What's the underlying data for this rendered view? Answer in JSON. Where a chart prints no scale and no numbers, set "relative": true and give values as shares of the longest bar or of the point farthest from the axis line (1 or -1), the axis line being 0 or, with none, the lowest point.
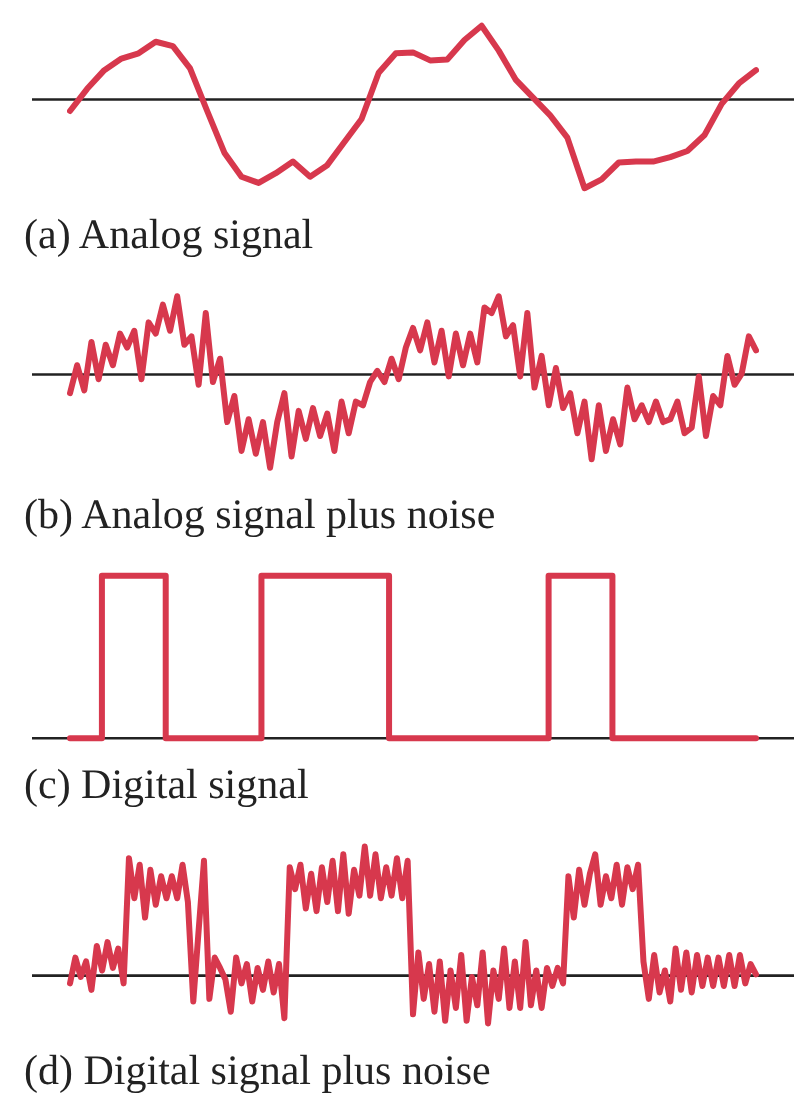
{
  "chart_data": [
    {
      "type": "line",
      "title": "(a) Analog signal",
      "relative": true,
      "tick_labels": false,
      "color": "#d7384d",
      "categories": [
        null,
        null,
        null,
        null,
        null,
        null,
        null,
        null,
        null,
        null,
        null,
        null,
        null,
        null,
        null,
        null,
        null,
        null,
        null,
        null,
        null,
        null,
        null,
        null,
        null,
        null,
        null,
        null,
        null,
        null,
        null,
        null,
        null,
        null,
        null,
        null,
        null,
        null,
        null,
        null,
        null
      ],
      "values": [
        -0.13,
        0.12,
        0.33,
        0.46,
        0.52,
        0.65,
        0.6,
        0.35,
        -0.13,
        -0.6,
        -0.87,
        -0.94,
        -0.83,
        -0.7,
        -0.87,
        -0.74,
        -0.48,
        -0.22,
        0.3,
        0.52,
        0.53,
        0.44,
        0.45,
        0.67,
        0.83,
        0.55,
        0.22,
        0.02,
        -0.18,
        -0.43,
        -1,
        -0.9,
        -0.71,
        -0.7,
        -0.7,
        -0.65,
        -0.58,
        -0.4,
        -0.05,
        0.18,
        0.33
      ]
    },
    {
      "type": "line",
      "title": "(b) Analog signal plus noise",
      "relative": true,
      "tick_labels": false,
      "color": "#d7384d",
      "categories": [
        null,
        null,
        null,
        null,
        null,
        null,
        null,
        null,
        null,
        null,
        null,
        null,
        null,
        null,
        null,
        null,
        null,
        null,
        null,
        null,
        null,
        null,
        null,
        null,
        null,
        null,
        null,
        null,
        null,
        null,
        null,
        null,
        null,
        null,
        null,
        null,
        null,
        null,
        null,
        null,
        null,
        null,
        null,
        null,
        null,
        null,
        null,
        null,
        null,
        null,
        null,
        null,
        null,
        null,
        null,
        null,
        null,
        null,
        null,
        null,
        null,
        null,
        null,
        null,
        null,
        null,
        null,
        null,
        null,
        null,
        null,
        null,
        null,
        null,
        null,
        null,
        null,
        null,
        null,
        null,
        null,
        null,
        null,
        null,
        null,
        null,
        null,
        null,
        null,
        null,
        null,
        null,
        null,
        null,
        null,
        null,
        null
      ],
      "values": [
        -0.2,
        0.1,
        -0.17,
        0.35,
        -0.05,
        0.32,
        0.1,
        0.44,
        0.29,
        0.47,
        -0.05,
        0.56,
        0.44,
        0.75,
        0.47,
        0.84,
        0.32,
        0.41,
        -0.11,
        0.66,
        -0.08,
        0.17,
        -0.51,
        -0.23,
        -0.82,
        -0.48,
        -0.85,
        -0.51,
        -1,
        -0.51,
        -0.2,
        -0.88,
        -0.39,
        -0.69,
        -0.36,
        -0.66,
        -0.42,
        -0.82,
        -0.29,
        -0.63,
        -0.29,
        -0.33,
        -0.08,
        0.04,
        -0.08,
        0.17,
        -0.05,
        0.29,
        0.5,
        0.26,
        0.56,
        0.13,
        0.47,
        -0.02,
        0.44,
        0.1,
        0.44,
        0.13,
        0.72,
        0.66,
        0.84,
        0.41,
        0.53,
        -0.02,
        0.66,
        -0.14,
        0.2,
        -0.33,
        0.07,
        -0.36,
        -0.2,
        -0.63,
        -0.29,
        -0.91,
        -0.33,
        -0.82,
        -0.48,
        -0.75,
        -0.14,
        -0.48,
        -0.33,
        -0.51,
        -0.29,
        -0.51,
        -0.48,
        -0.29,
        -0.63,
        -0.57,
        -0.02,
        -0.66,
        -0.23,
        -0.33,
        0.2,
        -0.11,
        0.01,
        0.41,
        0.26
      ]
    },
    {
      "type": "step",
      "title": "(c) Digital signal",
      "relative": true,
      "tick_labels": false,
      "color": "#d7384d",
      "categories": [
        null,
        null,
        null,
        null,
        null,
        null,
        null,
        null,
        null,
        null,
        null,
        null,
        null,
        null,
        null,
        null,
        null,
        null,
        null,
        null,
        null,
        null,
        null,
        null,
        null,
        null,
        null,
        null,
        null,
        null,
        null,
        null,
        null,
        null,
        null,
        null,
        null,
        null,
        null,
        null,
        null,
        null,
        null,
        null
      ],
      "values": [
        0,
        0,
        0,
        1,
        1,
        1,
        1,
        0,
        0,
        0,
        0,
        0,
        0,
        1,
        1,
        1,
        1,
        1,
        1,
        1,
        1,
        0,
        0,
        0,
        0,
        0,
        0,
        0,
        0,
        0,
        0,
        1,
        1,
        1,
        1,
        0,
        0,
        0,
        0,
        0,
        0,
        0,
        0,
        0
      ]
    },
    {
      "type": "line",
      "title": "(d) Digital signal plus noise",
      "relative": true,
      "tick_labels": false,
      "color": "#d7384d",
      "categories": [
        null,
        null,
        null,
        null,
        null,
        null,
        null,
        null,
        null,
        null,
        null,
        null,
        null,
        null,
        null,
        null,
        null,
        null,
        null,
        null,
        null,
        null,
        null,
        null,
        null,
        null,
        null,
        null,
        null,
        null,
        null,
        null,
        null,
        null,
        null,
        null,
        null,
        null,
        null,
        null,
        null,
        null,
        null,
        null,
        null,
        null,
        null,
        null,
        null,
        null,
        null,
        null,
        null,
        null,
        null,
        null,
        null,
        null,
        null,
        null,
        null,
        null,
        null,
        null,
        null,
        null,
        null,
        null,
        null,
        null,
        null,
        null,
        null,
        null,
        null,
        null,
        null,
        null,
        null,
        null,
        null,
        null,
        null,
        null,
        null,
        null,
        null,
        null,
        null,
        null,
        null,
        null,
        null,
        null,
        null,
        null,
        null,
        null,
        null,
        null,
        null,
        null,
        null,
        null,
        null,
        null,
        null,
        null,
        null,
        null,
        null,
        null,
        null,
        null,
        null,
        null,
        null,
        null,
        null,
        null,
        null,
        null,
        null,
        null,
        null,
        null,
        null,
        null,
        null
      ],
      "values": [
        -0.06,
        0.14,
        -0.01,
        0.11,
        -0.11,
        0.23,
        0.04,
        0.26,
        0.06,
        0.21,
        -0.06,
        0.91,
        0.6,
        0.86,
        0.45,
        0.82,
        0.55,
        0.77,
        0.6,
        0.77,
        0.6,
        0.86,
        0.57,
        -0.2,
        0.35,
        0.89,
        -0.18,
        0.14,
        0.06,
        -0.03,
        -0.28,
        0.14,
        -0.06,
        0.09,
        -0.2,
        0.06,
        -0.11,
        0.11,
        -0.13,
        0.09,
        -0.33,
        0.84,
        0.67,
        0.86,
        0.52,
        0.79,
        0.5,
        0.84,
        0.57,
        0.89,
        0.5,
        0.94,
        0.48,
        0.82,
        0.62,
        1,
        0.62,
        0.94,
        0.6,
        0.84,
        0.62,
        0.91,
        0.6,
        0.89,
        -0.3,
        0.18,
        -0.18,
        0.09,
        -0.28,
        0.11,
        -0.35,
        0.04,
        -0.25,
        0.16,
        -0.35,
        -0.01,
        -0.23,
        0.18,
        -0.37,
        0.04,
        -0.18,
        0.21,
        -0.25,
        0.11,
        -0.25,
        0.26,
        -0.23,
        0.04,
        -0.25,
        0.06,
        -0.08,
        0.06,
        -0.06,
        0.77,
        0.45,
        0.82,
        0.55,
        0.79,
        0.94,
        0.55,
        0.77,
        0.6,
        0.86,
        0.55,
        0.84,
        0.67,
        0.86,
        0.11,
        -0.18,
        0.16,
        -0.13,
        0.04,
        -0.2,
        0.21,
        -0.11,
        0.18,
        -0.13,
        0.16,
        -0.08,
        0.14,
        -0.08,
        0.14,
        -0.08,
        0.16,
        -0.08,
        0.16,
        -0.06,
        0.09,
        0.01
      ]
    }
  ]
}
